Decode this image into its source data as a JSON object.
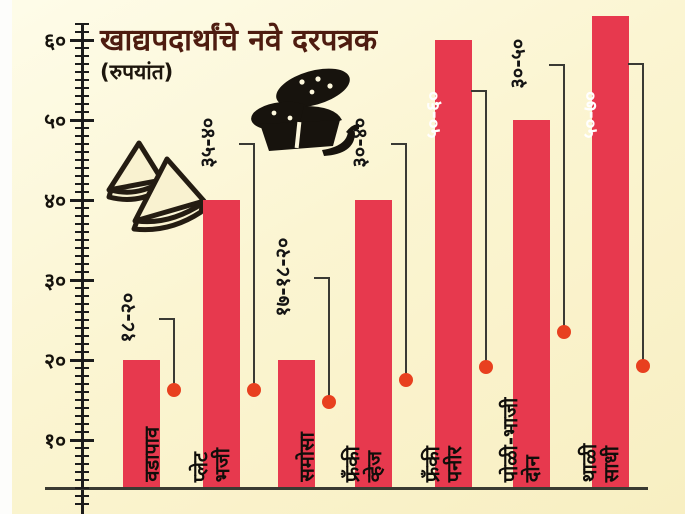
{
  "page": {
    "title": "खाद्यपदार्थांचे नवे दरपत्रक",
    "subtitle": "(रुपयांत)"
  },
  "chart_data": {
    "type": "bar",
    "title": "खाद्यपदार्थांचे नवे दरपत्रक",
    "subtitle": "(रुपयांत)",
    "unit": "rupees",
    "y_axis": {
      "ticks": [
        {
          "label": "१०",
          "value": 10
        },
        {
          "label": "२०",
          "value": 20
        },
        {
          "label": "३०",
          "value": 30
        },
        {
          "label": "४०",
          "value": 40
        },
        {
          "label": "५०",
          "value": 50
        },
        {
          "label": "६०",
          "value": 60
        }
      ],
      "range": [
        0,
        65
      ],
      "minor_tick_step": 1,
      "style": "ruler"
    },
    "legend_position": "none",
    "grid": false,
    "items": [
      {
        "name": "वडापाव",
        "price_range_label": "१८-२०",
        "price_range": [
          18,
          20
        ],
        "bar_top_value": 20,
        "label_position": "outside"
      },
      {
        "name": "भजी प्लेट",
        "price_range_label": "३५-४०",
        "price_range": [
          35,
          40
        ],
        "bar_top_value": 40,
        "label_position": "outside"
      },
      {
        "name": "समोसा",
        "price_range_label": "१७-१८-२०",
        "price_range": [
          17,
          18,
          20
        ],
        "bar_top_value": 20,
        "label_position": "outside"
      },
      {
        "name": "व्हेज फ्रँकी",
        "price_range_label": "३०-४०",
        "price_range": [
          30,
          40
        ],
        "bar_top_value": 40,
        "label_position": "outside"
      },
      {
        "name": "पनीर फ्रँकी",
        "price_range_label": "५०-६०",
        "price_range": [
          50,
          60
        ],
        "bar_top_value": 60,
        "label_position": "on-bar"
      },
      {
        "name": "दोन पोळी-भाजी",
        "price_range_label": "३०-५०",
        "price_range": [
          30,
          50
        ],
        "bar_top_value": 50,
        "label_position": "outside"
      },
      {
        "name": "साधी थाळी",
        "price_range_label": "५०-७०",
        "price_range": [
          50,
          70
        ],
        "bar_top_value": 63,
        "label_position": "on-bar"
      }
    ],
    "icons": [
      "samosa",
      "vada-pav-with-chili"
    ],
    "colors": {
      "bar": "#e7394e",
      "dot": "#e8401f",
      "title": "#4e1c10",
      "background": "#faf4cf",
      "axis": "#1c1c1c",
      "leader_line": "#3a3a34",
      "label": "#141414",
      "on_bar_label": "#ffffff"
    }
  }
}
